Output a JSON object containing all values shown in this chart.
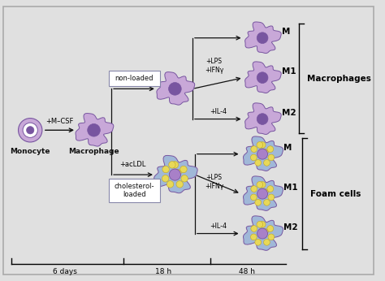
{
  "bg_color": "#e0e0e0",
  "border_color": "#aaaaaa",
  "cell_purple_light": "#c8a8d8",
  "cell_purple_dark": "#7855a0",
  "cell_purple_mid": "#a880c8",
  "cell_blue_light": "#a0b8d8",
  "cell_blue_dark": "#7890b8",
  "lipid_yellow": "#e8d858",
  "text_color": "#111111",
  "arrow_color": "#111111",
  "box_border": "#8888aa",
  "timeline_labels": [
    "6 days",
    "18 h",
    "48 h"
  ],
  "label_monocyte": "Monocyte",
  "label_macrophage": "Macrophage",
  "label_mcsf": "+M–CSF",
  "label_nonloaded": "non-loaded",
  "label_cholesterol": "cholesterol-\nloaded",
  "label_aclDL": "+acLDL",
  "label_lps_ifn": "+LPS\n+IFNγ",
  "label_il4": "+IL-4",
  "label_macrophages": "Macrophages",
  "label_foam": "Foam cells",
  "labels_M_upper": [
    "M",
    "M1",
    "M2"
  ],
  "labels_M_lower": [
    "M",
    "M1",
    "M2"
  ]
}
